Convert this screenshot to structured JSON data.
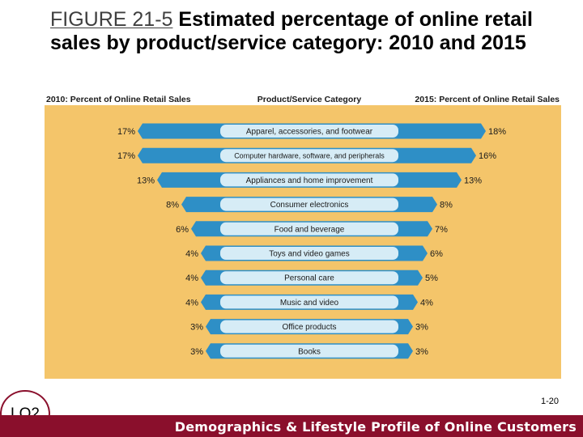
{
  "slide": {
    "figure_label": "FIGURE 21-5",
    "title_text": "Estimated percentage of online retail sales by product/service category: 2010 and 2015",
    "lo_label": "LO2",
    "page_number": "1-20",
    "footer_text": "Demographics & Lifestyle Profile of Online Customers"
  },
  "colors": {
    "panel_bg": "#f4c56a",
    "header_bg": "#ffffff",
    "bar_2010": "#2e8fc6",
    "bar_2015": "#2e8fc6",
    "label_pill": "#d6ecf6",
    "footer_bg": "#8a0f2c"
  },
  "chart_data": {
    "type": "bar",
    "headers": {
      "left": "2010: Percent of Online Retail Sales",
      "center": "Product/Service Category",
      "right": "2015: Percent of Online Retail Sales"
    },
    "categories": [
      "Apparel, accessories, and footwear",
      "Computer hardware, software, and peripherals",
      "Appliances and home improvement",
      "Consumer electronics",
      "Food and beverage",
      "Toys and video games",
      "Personal care",
      "Music and video",
      "Office products",
      "Books"
    ],
    "series": [
      {
        "name": "2010",
        "values": [
          17,
          17,
          13,
          8,
          6,
          4,
          4,
          4,
          3,
          3
        ]
      },
      {
        "name": "2015",
        "values": [
          18,
          16,
          13,
          8,
          7,
          6,
          5,
          4,
          3,
          3
        ]
      }
    ],
    "unit": "%"
  }
}
